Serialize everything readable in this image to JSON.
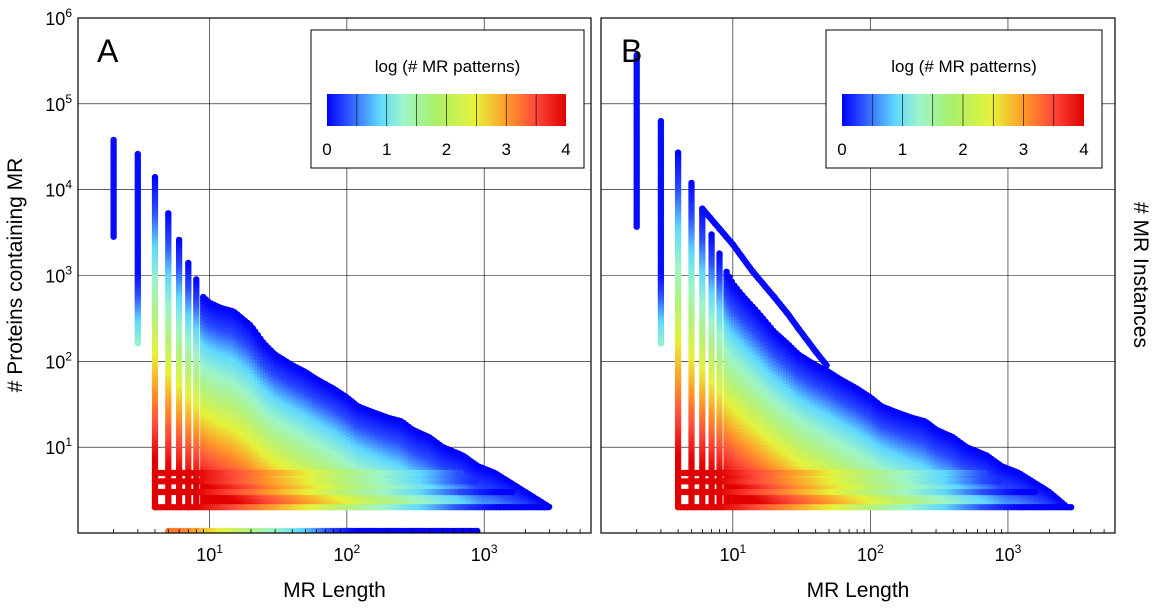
{
  "figure": {
    "ylabel": "# Proteins containing MR",
    "right_label": "# MR Instances",
    "colors": {
      "scale": [
        "#0000ff",
        "#2a4cff",
        "#5fd8ff",
        "#9df5c8",
        "#b5f27a",
        "#e6f23a",
        "#ff9b2a",
        "#ff4a3a",
        "#e00000"
      ],
      "background": "#ffffff",
      "grid": "#000000"
    }
  },
  "chart_data": [
    {
      "panel": "A",
      "type": "scatter",
      "scale": "log-log",
      "xlabel": "MR Length",
      "ylabel": "# Proteins containing MR",
      "xlim": [
        1.1,
        6000
      ],
      "ylim": [
        1,
        1000000
      ],
      "xticks": [
        {
          "value": 10,
          "label": "10",
          "exp": "1"
        },
        {
          "value": 100,
          "label": "10",
          "exp": "2"
        },
        {
          "value": 1000,
          "label": "10",
          "exp": "3"
        }
      ],
      "yticks": [
        {
          "value": 10,
          "label": "10",
          "exp": "1"
        },
        {
          "value": 100,
          "label": "10",
          "exp": "2"
        },
        {
          "value": 1000,
          "label": "10",
          "exp": "3"
        },
        {
          "value": 10000,
          "label": "10",
          "exp": "4"
        },
        {
          "value": 100000,
          "label": "10",
          "exp": "5"
        },
        {
          "value": 1000000,
          "label": "10",
          "exp": "6"
        }
      ],
      "grid": true,
      "colorbar": {
        "title": "log (# MR patterns)",
        "ticks": [
          "0",
          "1",
          "2",
          "3",
          "4"
        ],
        "range": [
          0,
          4
        ]
      },
      "series": [
        {
          "name": "column-length-2",
          "x": 2,
          "y_min": 2800,
          "y_max": 38000
        },
        {
          "name": "column-length-3",
          "x": 3,
          "y_min": 160,
          "y_max": 26000
        },
        {
          "name": "upper-envelope",
          "x": [
            4,
            5,
            6,
            7,
            8,
            9,
            10,
            12,
            15,
            20,
            25,
            30,
            40,
            50,
            60,
            80,
            100,
            120,
            150,
            200,
            250,
            300,
            400,
            500,
            700,
            900,
            1200,
            2000,
            3000
          ],
          "y": [
            14000,
            5300,
            2600,
            1400,
            900,
            560,
            480,
            420,
            380,
            260,
            160,
            120,
            90,
            75,
            62,
            48,
            38,
            30,
            26,
            22,
            20,
            16,
            13,
            10,
            8,
            6,
            5,
            3,
            2
          ]
        },
        {
          "name": "y-equals-1-row",
          "x_min": 5,
          "x_max": 900,
          "y": 1
        }
      ]
    },
    {
      "panel": "B",
      "type": "scatter",
      "scale": "log-log",
      "xlabel": "MR Length",
      "ylabel": "# MR Instances",
      "xlim": [
        1.1,
        6000
      ],
      "ylim": [
        1,
        1000000
      ],
      "xticks": [
        {
          "value": 10,
          "label": "10",
          "exp": "1"
        },
        {
          "value": 100,
          "label": "10",
          "exp": "2"
        },
        {
          "value": 1000,
          "label": "10",
          "exp": "3"
        }
      ],
      "yticks": [
        {
          "value": 10,
          "label": "10",
          "exp": "1"
        },
        {
          "value": 100,
          "label": "10",
          "exp": "2"
        },
        {
          "value": 1000,
          "label": "10",
          "exp": "3"
        },
        {
          "value": 10000,
          "label": "10",
          "exp": "4"
        },
        {
          "value": 100000,
          "label": "10",
          "exp": "5"
        },
        {
          "value": 1000000,
          "label": "10",
          "exp": "6"
        }
      ],
      "grid": true,
      "colorbar": {
        "title": "log (# MR patterns)",
        "ticks": [
          "0",
          "1",
          "2",
          "3",
          "4"
        ],
        "range": [
          0,
          4
        ]
      },
      "series": [
        {
          "name": "column-length-2",
          "x": 2,
          "y_min": 3500,
          "y_max": 370000
        },
        {
          "name": "column-length-3",
          "x": 3,
          "y_min": 160,
          "y_max": 63000
        },
        {
          "name": "upper-envelope",
          "x": [
            4,
            5,
            6,
            7,
            8,
            9,
            10,
            12,
            15,
            20,
            25,
            30,
            40,
            50,
            60,
            80,
            100,
            120,
            150,
            200,
            250,
            300,
            400,
            500,
            700,
            900,
            1200,
            2000,
            2700
          ],
          "y": [
            27000,
            12000,
            6000,
            3000,
            1800,
            1100,
            800,
            560,
            380,
            220,
            160,
            120,
            90,
            75,
            62,
            48,
            38,
            30,
            26,
            22,
            20,
            16,
            13,
            10,
            8,
            6,
            5,
            3,
            2
          ]
        },
        {
          "name": "diagonal-arc",
          "x": [
            6,
            8,
            10,
            14,
            20,
            25,
            30,
            40,
            48
          ],
          "y": [
            6000,
            3500,
            2300,
            1100,
            560,
            360,
            240,
            130,
            90
          ]
        }
      ]
    }
  ]
}
